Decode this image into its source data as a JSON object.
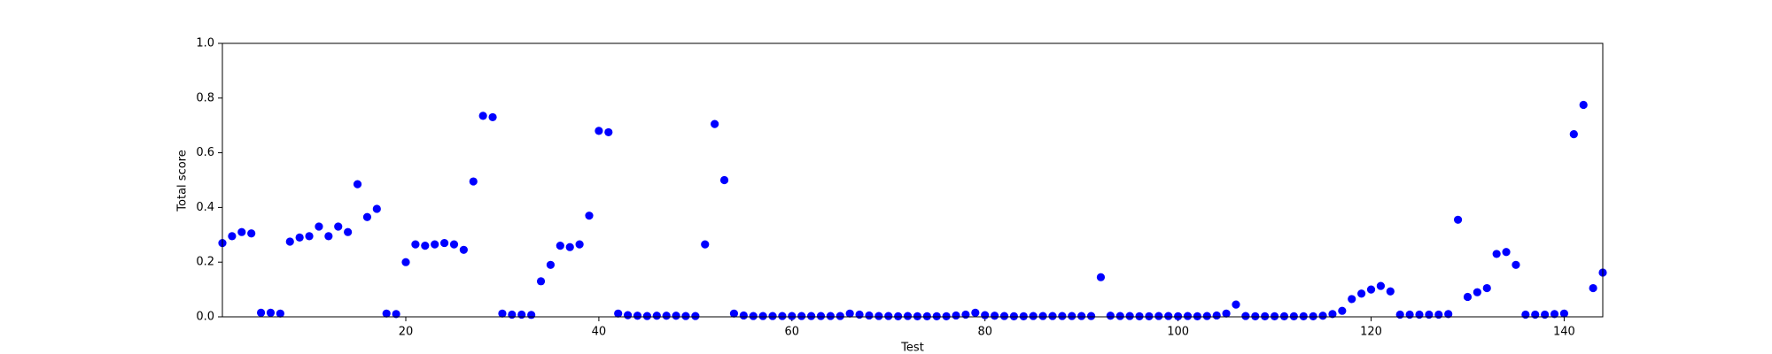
{
  "chart_data": {
    "type": "scatter",
    "x_label": "Test",
    "y_label": "Total score",
    "x": [
      1,
      2,
      3,
      4,
      5,
      6,
      7,
      8,
      9,
      10,
      11,
      12,
      13,
      14,
      15,
      16,
      17,
      18,
      19,
      20,
      21,
      22,
      23,
      24,
      25,
      26,
      27,
      28,
      29,
      30,
      31,
      32,
      33,
      34,
      35,
      36,
      37,
      38,
      39,
      40,
      41,
      42,
      43,
      44,
      45,
      46,
      47,
      48,
      49,
      50,
      51,
      52,
      53,
      54,
      55,
      56,
      57,
      58,
      59,
      60,
      61,
      62,
      63,
      64,
      65,
      66,
      67,
      68,
      69,
      70,
      71,
      72,
      73,
      74,
      75,
      76,
      77,
      78,
      79,
      80,
      81,
      82,
      83,
      84,
      85,
      86,
      87,
      88,
      89,
      90,
      91,
      92,
      93,
      94,
      95,
      96,
      97,
      98,
      99,
      100,
      101,
      102,
      103,
      104,
      105,
      106,
      107,
      108,
      109,
      110,
      111,
      112,
      113,
      114,
      115,
      116,
      117,
      118,
      119,
      120,
      121,
      122,
      123,
      124,
      125,
      126,
      127,
      128,
      129,
      130,
      131,
      132,
      133,
      134,
      135,
      136,
      137,
      138,
      139,
      140,
      141,
      142,
      143,
      144
    ],
    "values": [
      0.27,
      0.295,
      0.31,
      0.305,
      0.015,
      0.015,
      0.012,
      0.275,
      0.29,
      0.295,
      0.33,
      0.295,
      0.33,
      0.31,
      0.485,
      0.365,
      0.395,
      0.012,
      0.01,
      0.2,
      0.265,
      0.26,
      0.265,
      0.27,
      0.265,
      0.245,
      0.495,
      0.735,
      0.73,
      0.012,
      0.008,
      0.008,
      0.007,
      0.13,
      0.19,
      0.26,
      0.255,
      0.265,
      0.37,
      0.68,
      0.675,
      0.012,
      0.006,
      0.004,
      0.003,
      0.004,
      0.004,
      0.004,
      0.003,
      0.003,
      0.265,
      0.705,
      0.5,
      0.012,
      0.005,
      0.003,
      0.003,
      0.003,
      0.003,
      0.003,
      0.003,
      0.003,
      0.003,
      0.003,
      0.003,
      0.012,
      0.008,
      0.005,
      0.003,
      0.003,
      0.002,
      0.003,
      0.002,
      0.002,
      0.002,
      0.002,
      0.005,
      0.008,
      0.015,
      0.006,
      0.004,
      0.003,
      0.002,
      0.002,
      0.003,
      0.003,
      0.003,
      0.003,
      0.003,
      0.003,
      0.003,
      0.145,
      0.004,
      0.003,
      0.003,
      0.002,
      0.002,
      0.003,
      0.003,
      0.002,
      0.003,
      0.002,
      0.003,
      0.005,
      0.012,
      0.045,
      0.003,
      0.002,
      0.002,
      0.002,
      0.002,
      0.002,
      0.002,
      0.002,
      0.004,
      0.01,
      0.022,
      0.065,
      0.085,
      0.1,
      0.113,
      0.093,
      0.008,
      0.008,
      0.008,
      0.008,
      0.008,
      0.01,
      0.355,
      0.073,
      0.09,
      0.105,
      0.23,
      0.237,
      0.19,
      0.008,
      0.008,
      0.008,
      0.01,
      0.012,
      0.668,
      0.775,
      0.105,
      0.162
    ],
    "color": "#0000ff",
    "xlim": [
      1,
      144
    ],
    "xticks": [
      20,
      40,
      60,
      80,
      100,
      120,
      140
    ],
    "ylim": [
      0,
      1
    ],
    "yticks": [
      {
        "value": 0,
        "label": "0.0"
      },
      {
        "value": 0.2,
        "label": "0.2"
      },
      {
        "value": 0.4,
        "label": "0.4"
      },
      {
        "value": 0.6,
        "label": "0.6"
      },
      {
        "value": 0.8,
        "label": "0.8"
      },
      {
        "value": 1,
        "label": "1.0"
      }
    ],
    "grid": false
  }
}
